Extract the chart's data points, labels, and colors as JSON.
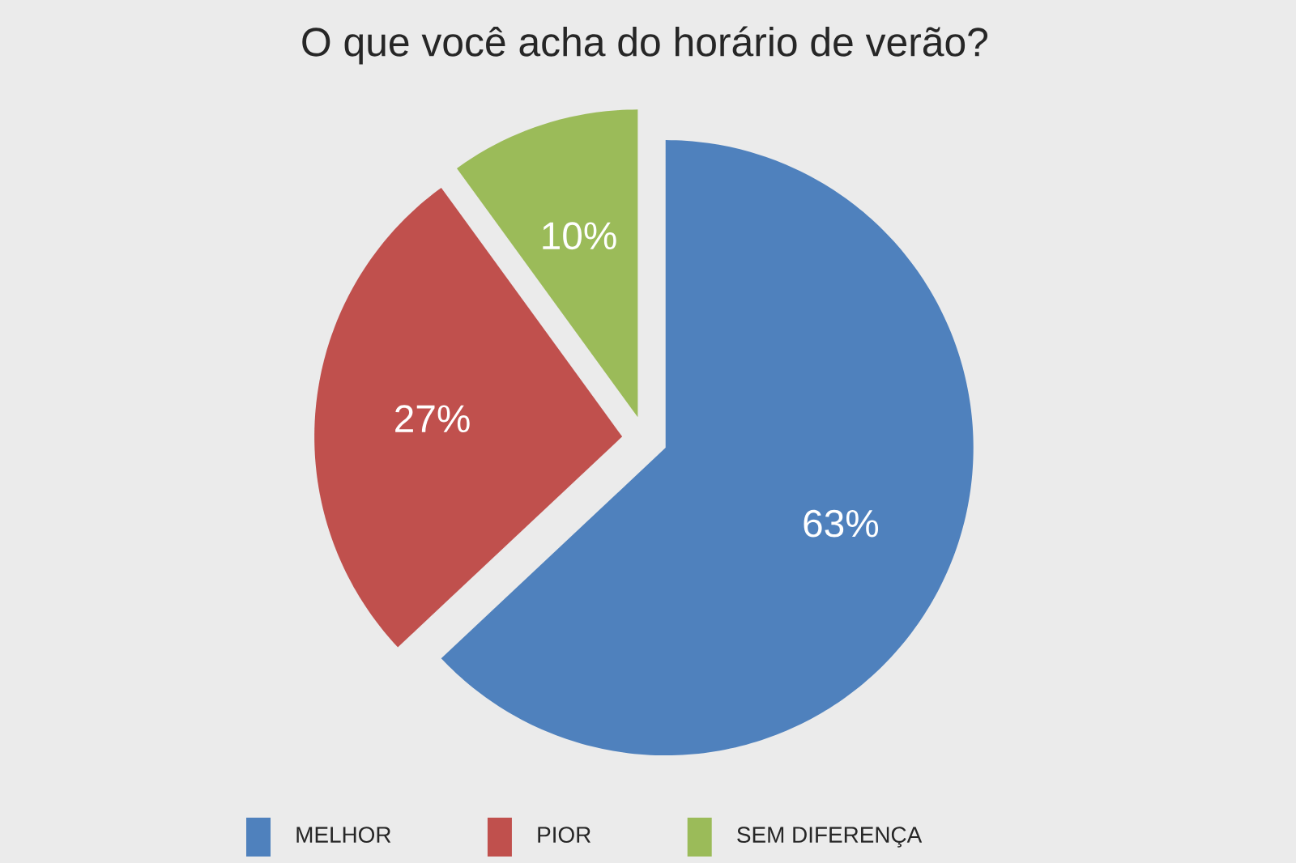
{
  "chart_data": {
    "type": "pie",
    "title": "O que você acha do horário de verão?",
    "categories": [
      "MELHOR",
      "PIOR",
      "SEM DIFERENÇA"
    ],
    "values": [
      63,
      27,
      10
    ],
    "colors": [
      "#4f81bd",
      "#c0504d",
      "#9bbb59"
    ],
    "value_labels": [
      "63%",
      "27%",
      "10%"
    ],
    "legend": "bottom"
  }
}
